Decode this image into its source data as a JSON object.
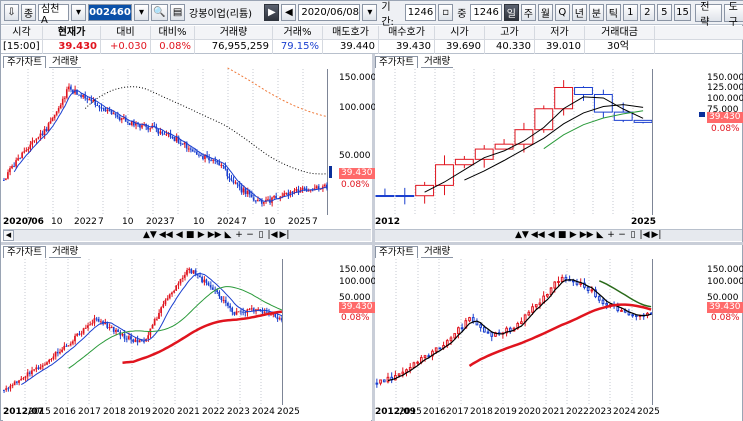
{
  "toolbar": {
    "down_icon": "⇩",
    "jong_btn": "종",
    "market": "심천A",
    "code": "002460",
    "search_icon": "🔍",
    "menu_icon": "▤",
    "stock_name": "강봉이업(리튬)",
    "play_icon": "▶",
    "back_icon": "◀",
    "date": "2020/06/08",
    "period_label": "기간:",
    "period_value": "1246",
    "jung_label": "중",
    "jung_value": "1246",
    "periods": [
      "일",
      "주",
      "월",
      "Q",
      "년",
      "분",
      "틱",
      "1",
      "2",
      "5",
      "15"
    ],
    "strategy_btn": "전략",
    "tools_btn": "도구"
  },
  "quote": {
    "headers": [
      "시각",
      "현재가",
      "대비",
      "대비%",
      "거래량",
      "거래%",
      "매도호가",
      "매수호가",
      "시가",
      "고가",
      "저가",
      "거래대금"
    ],
    "values": [
      "[15:00]",
      "39.430",
      "+0.030",
      "0.08%",
      "76,955,259",
      "79.15%",
      "39.440",
      "39.430",
      "39.690",
      "40.330",
      "39.010",
      "30억"
    ]
  },
  "panels": [
    {
      "tab_main": "주가차트",
      "tab_volume": "거래량",
      "y_labels": [
        "150.000",
        "100.000",
        "50.000"
      ],
      "price": "39.430",
      "pct": "0.08%",
      "x_labels": [
        "2020/06",
        "7",
        "10",
        "2022",
        "7",
        "10",
        "2023",
        "7",
        "10",
        "2024",
        "7",
        "10",
        "2025",
        "7"
      ]
    },
    {
      "tab_main": "주가차트",
      "tab_volume": "거래량",
      "y_labels": [
        "150.000",
        "125.000",
        "100.000",
        "75.000"
      ],
      "price": "39.430",
      "pct": "0.08%",
      "x_labels": [
        "2012",
        "2025"
      ]
    },
    {
      "tab_main": "주가차트",
      "tab_volume": "거래량",
      "y_labels": [
        "150.000",
        "100.000",
        "50.000"
      ],
      "price": "39.430",
      "pct": "0.08%",
      "x_labels": [
        "2012/07",
        "2015",
        "2016",
        "2017",
        "2018",
        "2019",
        "2020",
        "2021",
        "2022",
        "2023",
        "2024",
        "2025"
      ]
    },
    {
      "tab_main": "주가차트",
      "tab_volume": "거래량",
      "y_labels": [
        "150.000",
        "100.000",
        "50.000"
      ],
      "price": "39.430",
      "pct": "0.08%",
      "x_labels": [
        "2012/09",
        "2015",
        "2016",
        "2017",
        "2018",
        "2019",
        "2020",
        "2021",
        "2022",
        "2023",
        "2024",
        "2025"
      ]
    }
  ],
  "scroll_controls": [
    "▲▼",
    "◀◀",
    "◀",
    "■",
    "▶",
    "▶▶",
    "◣",
    "+",
    "−",
    "▯",
    "|◀",
    "▶|"
  ],
  "colors": {
    "up": "#e0141e",
    "down": "#1a3fcf",
    "ma_black": "#000000",
    "ma_red": "#e0141e",
    "ma_green": "#2a9a3a",
    "accent": "#0a50a8"
  }
}
